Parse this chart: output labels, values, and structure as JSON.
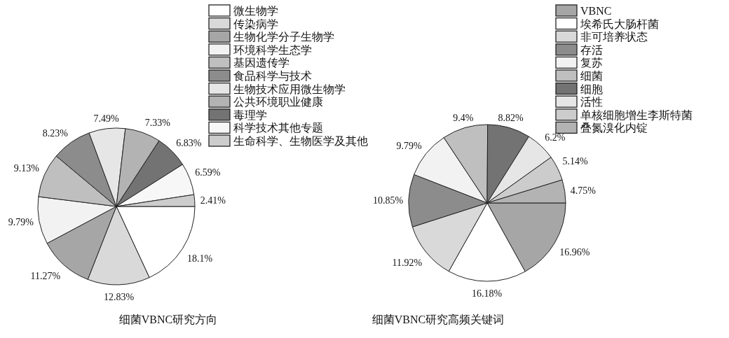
{
  "chart_data": [
    {
      "type": "pie",
      "title": "细菌VBNC研究方向",
      "categories": [
        "微生物学",
        "传染病学",
        "生物化学分子生物学",
        "环境科学生态学",
        "基因遗传学",
        "食品科学与技术",
        "生物技术应用微生物学",
        "公共环境职业健康",
        "毒理学",
        "科学技术其他专题",
        "生命科学、生物医学及其他"
      ],
      "values": [
        18.1,
        12.83,
        11.27,
        9.79,
        9.13,
        8.23,
        7.49,
        7.33,
        6.83,
        6.59,
        2.41
      ],
      "colors": [
        "#ffffff",
        "#d9d9d9",
        "#a6a6a6",
        "#f2f2f2",
        "#bfbfbf",
        "#8c8c8c",
        "#e6e6e6",
        "#b3b3b3",
        "#737373",
        "#f7f7f7",
        "#cccccc"
      ],
      "value_labels": [
        "18.1%",
        "12.83%",
        "11.27%",
        "9.79%",
        "9.13%",
        "8.23%",
        "7.49%",
        "7.33%",
        "6.83%",
        "6.59%",
        "2.41%"
      ],
      "legend": "top right"
    },
    {
      "type": "pie",
      "title": "细菌VBNC研究高频关键词",
      "categories": [
        "VBNC",
        "埃希氏大肠杆菌",
        "非可培养状态",
        "存活",
        "复苏",
        "细菌",
        "细胞",
        "活性",
        "单核细胞增生李斯特菌",
        "叠氮溴化内锭"
      ],
      "values": [
        16.96,
        16.18,
        11.92,
        10.85,
        9.79,
        9.4,
        8.82,
        6.2,
        5.14,
        4.75
      ],
      "colors": [
        "#a6a6a6",
        "#ffffff",
        "#d9d9d9",
        "#8c8c8c",
        "#f2f2f2",
        "#bfbfbf",
        "#737373",
        "#e6e6e6",
        "#cccccc",
        "#b3b3b3"
      ],
      "value_labels": [
        "16.96%",
        "16.18%",
        "11.92%",
        "10.85%",
        "9.79%",
        "9.4%",
        "8.82%",
        "6.2%",
        "5.14%",
        "4.75%"
      ],
      "legend": "top right"
    }
  ]
}
